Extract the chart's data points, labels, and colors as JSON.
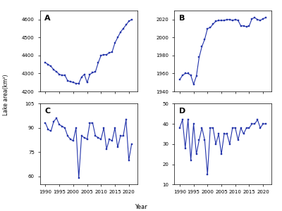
{
  "A": {
    "years": [
      1990,
      1991,
      1992,
      1993,
      1994,
      1995,
      1996,
      1997,
      1998,
      1999,
      2000,
      2001,
      2002,
      2003,
      2004,
      2005,
      2006,
      2007,
      2008,
      2009,
      2010,
      2011,
      2012,
      2013,
      2014,
      2015,
      2016,
      2017,
      2018,
      2019,
      2020,
      2021
    ],
    "values": [
      4360,
      4350,
      4340,
      4320,
      4310,
      4295,
      4290,
      4290,
      4260,
      4255,
      4250,
      4245,
      4245,
      4280,
      4295,
      4250,
      4295,
      4305,
      4310,
      4360,
      4400,
      4405,
      4405,
      4415,
      4420,
      4470,
      4500,
      4530,
      4550,
      4570,
      4590,
      4600
    ],
    "ylim": [
      4200,
      4650
    ],
    "yticks": [
      4200,
      4300,
      4400,
      4500,
      4600
    ],
    "label": "A"
  },
  "B": {
    "years": [
      1990,
      1991,
      1992,
      1993,
      1994,
      1995,
      1996,
      1997,
      1998,
      1999,
      2000,
      2001,
      2002,
      2003,
      2004,
      2005,
      2006,
      2007,
      2008,
      2009,
      2010,
      2011,
      2012,
      2013,
      2014,
      2015,
      2016,
      2017,
      2018,
      2019,
      2020,
      2021
    ],
    "values": [
      1953,
      1958,
      1960,
      1960,
      1958,
      1948,
      1957,
      1978,
      1990,
      1998,
      2010,
      2011,
      2015,
      2018,
      2019,
      2019,
      2019,
      2020,
      2020,
      2019,
      2020,
      2019,
      2013,
      2013,
      2012,
      2013,
      2021,
      2022,
      2020,
      2019,
      2021,
      2022
    ],
    "ylim": [
      1940,
      2030
    ],
    "yticks": [
      1940,
      1960,
      1980,
      2000,
      2020
    ],
    "label": "B"
  },
  "C": {
    "years": [
      1990,
      1991,
      1992,
      1993,
      1994,
      1995,
      1996,
      1997,
      1998,
      1999,
      2000,
      2001,
      2002,
      2003,
      2004,
      2005,
      2006,
      2007,
      2008,
      2009,
      2010,
      2011,
      2012,
      2013,
      2014,
      2015,
      2016,
      2017,
      2018,
      2019,
      2020,
      2021
    ],
    "values": [
      93,
      89,
      88,
      94,
      96,
      92,
      91,
      90,
      85,
      83,
      82,
      90,
      59,
      85,
      84,
      83,
      93,
      93,
      85,
      84,
      83,
      90,
      77,
      83,
      82,
      90,
      78,
      85,
      85,
      95,
      70,
      80
    ],
    "ylim": [
      55,
      105
    ],
    "yticks": [
      60,
      75,
      90,
      105
    ],
    "label": "C"
  },
  "D": {
    "years": [
      1990,
      1991,
      1992,
      1993,
      1994,
      1995,
      1996,
      1997,
      1998,
      1999,
      2000,
      2001,
      2002,
      2003,
      2004,
      2005,
      2006,
      2007,
      2008,
      2009,
      2010,
      2011,
      2012,
      2013,
      2014,
      2015,
      2016,
      2017,
      2018,
      2019,
      2020,
      2021
    ],
    "values": [
      38,
      42,
      28,
      42,
      22,
      40,
      25,
      32,
      38,
      32,
      15,
      38,
      38,
      30,
      35,
      25,
      35,
      35,
      30,
      38,
      38,
      32,
      38,
      35,
      38,
      38,
      40,
      40,
      42,
      38,
      40,
      40
    ],
    "ylim": [
      10,
      50
    ],
    "yticks": [
      10,
      20,
      30,
      40,
      50
    ],
    "label": "D"
  },
  "line_color": "#2233aa",
  "marker": "s",
  "markersize": 2.0,
  "linewidth": 0.8,
  "xlabel": "Year",
  "ylabel": "Lake area(km²)",
  "xticks": [
    1990,
    1995,
    2000,
    2005,
    2010,
    2015,
    2020
  ]
}
